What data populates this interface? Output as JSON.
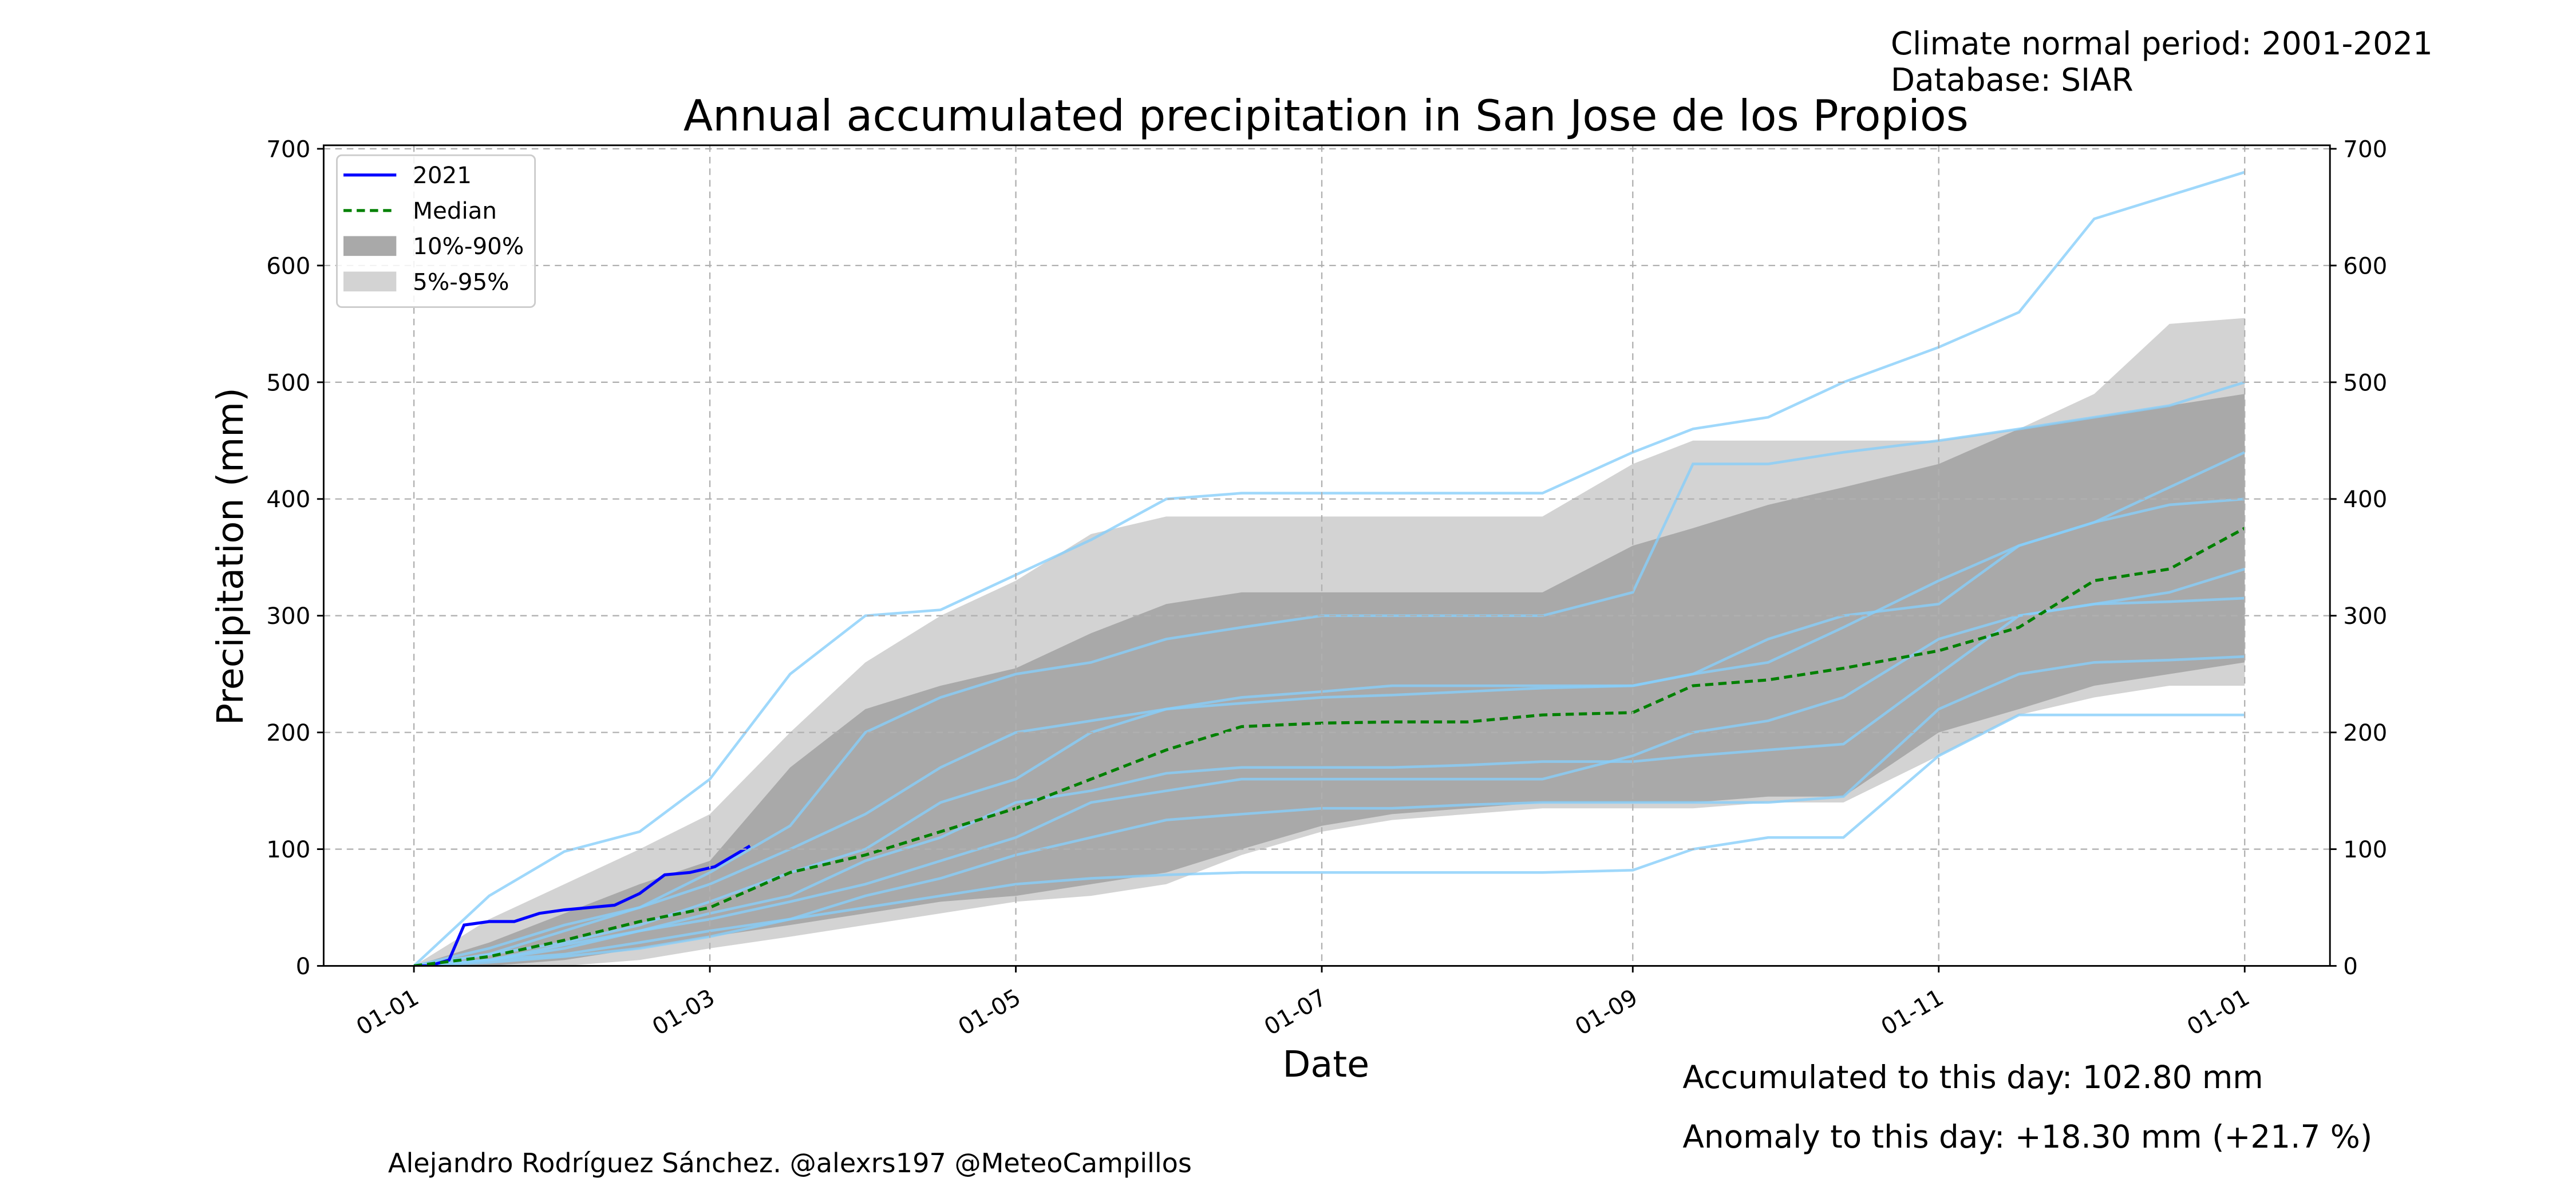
{
  "chart_data": {
    "type": "line",
    "title": "Annual accumulated precipitation in San Jose de los Propios",
    "notes": [
      "Climate normal period: 2001-2021",
      "Database: SIAR"
    ],
    "x_label": "Date",
    "y_label": "Precipitation (mm)",
    "annotations": {
      "accumulated": "Accumulated to this day: 102.80 mm",
      "anomaly": "Anomaly to this day: +18.30 mm (+21.7 %)",
      "anomaly_color": "#0000ff",
      "credit": "Alejandro Rodríguez Sánchez. @alexrs197 @MeteoCampillos"
    },
    "xlim": [
      -18,
      382
    ],
    "ylim": [
      0,
      703
    ],
    "xticks": [
      {
        "value": 0,
        "label": "01-01"
      },
      {
        "value": 59,
        "label": "01-03"
      },
      {
        "value": 120,
        "label": "01-05"
      },
      {
        "value": 181,
        "label": "01-07"
      },
      {
        "value": 243,
        "label": "01-09"
      },
      {
        "value": 304,
        "label": "01-11"
      },
      {
        "value": 365,
        "label": "01-01"
      }
    ],
    "yticks": [
      0,
      100,
      200,
      300,
      400,
      500,
      600,
      700
    ],
    "grid": true,
    "legend": "upper left",
    "x": [
      0,
      15,
      30,
      45,
      59,
      75,
      90,
      105,
      120,
      135,
      150,
      165,
      181,
      195,
      210,
      225,
      243,
      255,
      270,
      285,
      304,
      320,
      335,
      350,
      365
    ],
    "year_lines": {
      "color": "#87cefa",
      "values": [
        [
          0,
          60,
          98,
          115,
          160,
          250,
          300,
          305,
          335,
          365,
          400,
          405,
          405,
          405,
          405,
          405,
          440,
          460,
          470,
          500,
          530,
          560,
          640,
          660,
          680
        ],
        [
          0,
          5,
          10,
          20,
          30,
          40,
          50,
          60,
          70,
          75,
          78,
          80,
          80,
          80,
          80,
          80,
          82,
          100,
          110,
          110,
          180,
          215,
          215,
          215,
          215
        ],
        [
          0,
          10,
          30,
          50,
          80,
          120,
          200,
          230,
          250,
          260,
          280,
          290,
          300,
          300,
          300,
          300,
          320,
          430,
          430,
          440,
          450,
          460,
          470,
          480,
          500
        ],
        [
          0,
          5,
          15,
          30,
          45,
          60,
          90,
          110,
          140,
          150,
          165,
          170,
          170,
          170,
          172,
          175,
          175,
          180,
          185,
          190,
          250,
          300,
          310,
          320,
          340
        ],
        [
          0,
          10,
          20,
          35,
          55,
          80,
          100,
          140,
          160,
          200,
          220,
          230,
          235,
          240,
          240,
          240,
          240,
          250,
          260,
          290,
          330,
          360,
          380,
          395,
          400
        ],
        [
          0,
          3,
          8,
          15,
          25,
          40,
          60,
          75,
          95,
          110,
          125,
          130,
          135,
          135,
          138,
          140,
          140,
          140,
          140,
          145,
          220,
          250,
          260,
          262,
          265
        ],
        [
          0,
          15,
          35,
          50,
          70,
          100,
          130,
          170,
          200,
          210,
          220,
          225,
          230,
          232,
          235,
          238,
          240,
          250,
          280,
          300,
          310,
          360,
          380,
          410,
          440
        ],
        [
          0,
          5,
          18,
          30,
          40,
          55,
          70,
          90,
          110,
          140,
          150,
          160,
          160,
          160,
          160,
          160,
          180,
          200,
          210,
          230,
          280,
          300,
          310,
          312,
          315
        ]
      ]
    },
    "bands": [
      {
        "name": "10%-90%",
        "color": "#a9a9a9",
        "low": [
          0,
          0,
          5,
          15,
          25,
          35,
          45,
          55,
          60,
          70,
          80,
          100,
          120,
          130,
          135,
          140,
          140,
          140,
          145,
          145,
          200,
          220,
          240,
          250,
          260
        ],
        "high": [
          0,
          20,
          45,
          70,
          90,
          170,
          220,
          240,
          255,
          285,
          310,
          320,
          320,
          320,
          320,
          320,
          360,
          375,
          395,
          410,
          430,
          460,
          470,
          480,
          490
        ]
      },
      {
        "name": "5%-95%",
        "color": "#d3d3d3",
        "low": [
          0,
          0,
          0,
          5,
          15,
          25,
          35,
          45,
          55,
          60,
          70,
          95,
          115,
          125,
          130,
          135,
          135,
          135,
          140,
          140,
          180,
          215,
          230,
          240,
          240
        ],
        "high": [
          0,
          40,
          70,
          100,
          130,
          200,
          260,
          300,
          330,
          370,
          385,
          385,
          385,
          385,
          385,
          385,
          430,
          450,
          450,
          450,
          450,
          460,
          490,
          550,
          555
        ]
      }
    ],
    "series": [
      {
        "name": "2021",
        "color": "#0000ff",
        "x": [
          0,
          3,
          7,
          10,
          15,
          20,
          25,
          30,
          35,
          40,
          45,
          50,
          55,
          60,
          67
        ],
        "values": [
          0,
          0,
          5,
          35,
          38,
          38,
          45,
          48,
          50,
          52,
          62,
          78,
          80,
          85,
          102.8
        ]
      },
      {
        "name": "Median",
        "color": "#008000",
        "dashed": true,
        "values": [
          0,
          8,
          22,
          38,
          50,
          80,
          95,
          115,
          135,
          160,
          185,
          205,
          208,
          209,
          209,
          215,
          217,
          240,
          245,
          255,
          270,
          290,
          330,
          340,
          375
        ]
      }
    ]
  }
}
